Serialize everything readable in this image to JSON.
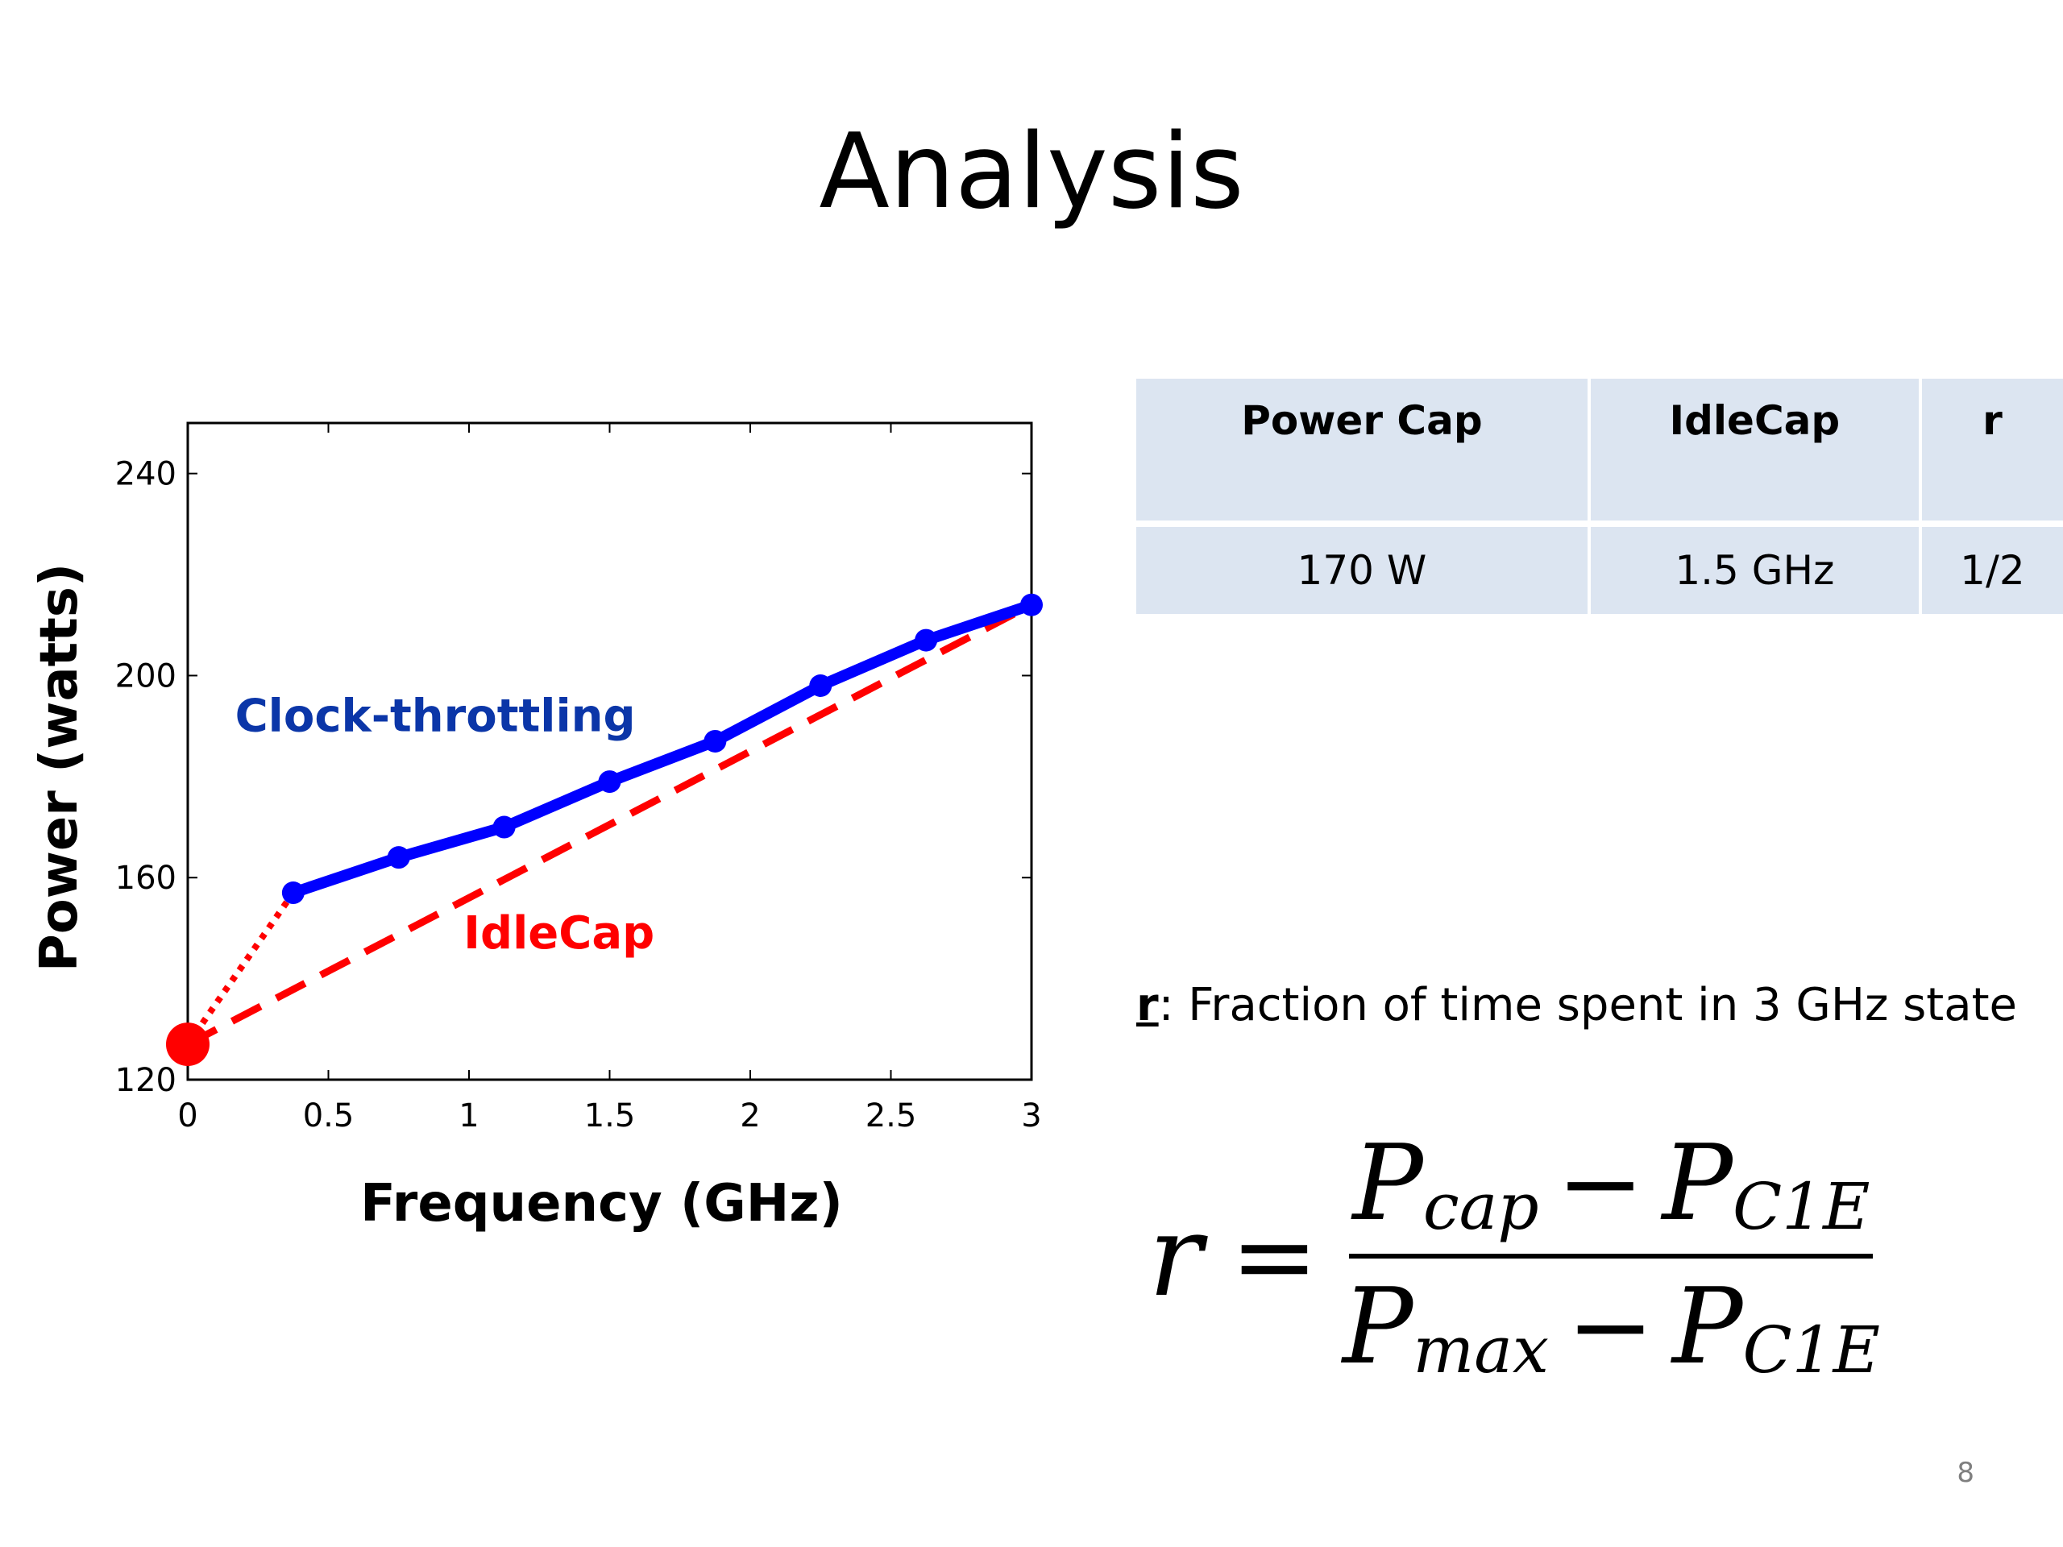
{
  "slide": {
    "title": "Analysis",
    "page_number": "8"
  },
  "chart_data": {
    "type": "line",
    "title": "",
    "xlabel": "Frequency (GHz)",
    "ylabel": "Power (watts)",
    "xlim": [
      0,
      3
    ],
    "ylim": [
      120,
      250
    ],
    "xticks": [
      0,
      0.5,
      1,
      1.5,
      2,
      2.5,
      3
    ],
    "xtick_labels": [
      "0",
      "0.5",
      "1",
      "1.5",
      "2",
      "2.5",
      "3"
    ],
    "yticks": [
      120,
      160,
      200,
      240
    ],
    "ytick_labels": [
      "120",
      "160",
      "200",
      "240"
    ],
    "grid": false,
    "series": [
      {
        "name": "Clock-throttling",
        "color": "#0000ff",
        "style": "solid-markers",
        "x": [
          0.375,
          0.75,
          1.125,
          1.5,
          1.875,
          2.25,
          2.625,
          3.0
        ],
        "y": [
          157,
          164,
          170,
          179,
          187,
          198,
          207,
          214
        ]
      },
      {
        "name": "IdleCap",
        "color": "#ff0000",
        "style": "dashed",
        "x": [
          0,
          3.0
        ],
        "y": [
          127,
          214
        ]
      }
    ],
    "extension": {
      "color": "#ff0000",
      "style": "dotted",
      "x": [
        0,
        0.375
      ],
      "y": [
        127,
        157
      ]
    },
    "idle_point": {
      "x": 0,
      "y": 127,
      "color": "#ff0000"
    },
    "annotations": [
      {
        "text": "Clock-throttling",
        "color": "#0b36a8",
        "x": 0.88,
        "y": 189
      },
      {
        "text": "IdleCap",
        "color": "#ff0000",
        "x": 1.32,
        "y": 146
      }
    ]
  },
  "table": {
    "headers": [
      "Power Cap",
      "IdleCap",
      "r"
    ],
    "rows": [
      [
        "170 W",
        "1.5 GHz",
        "1/2"
      ]
    ]
  },
  "definition": {
    "variable": "r",
    "text": ": Fraction of time spent in 3 GHz state"
  },
  "formula": {
    "lhs": "r",
    "equals": "=",
    "numerator": {
      "a": "P",
      "a_sub": "cap",
      "minus": "−",
      "b": "P",
      "b_sub": "C1E"
    },
    "denominator": {
      "a": "P",
      "a_sub": "max",
      "minus": "−",
      "b": "P",
      "b_sub": "C1E"
    }
  }
}
